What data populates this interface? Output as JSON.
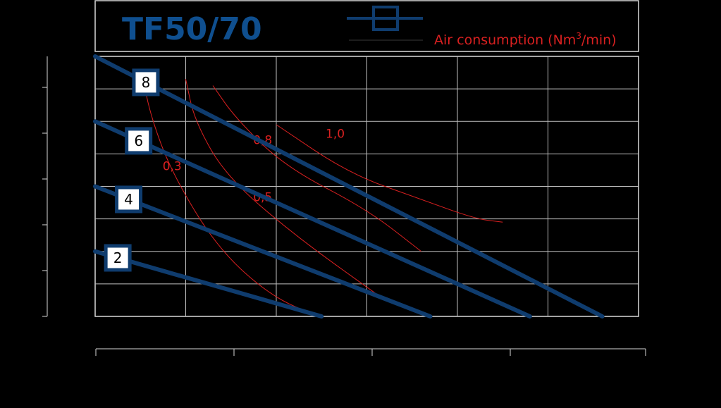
{
  "colors": {
    "background": "#000000",
    "frame": "#d9d9d9",
    "grid": "#bfbfbf",
    "series": "#0f3c6e",
    "title": "#0f4f8f",
    "air": "#d92020",
    "badge_fill": "#ffffff",
    "badge_text": "#000000"
  },
  "chart_data": {
    "type": "line",
    "title": "TF50/70",
    "legend_symbol": "square-marker-line",
    "air_legend": {
      "prefix": "Air consumption (Nm",
      "sup": "3",
      "suffix": "/min)"
    },
    "grid": true,
    "xlim": [
      0,
      6
    ],
    "ylim": [
      0,
      8
    ],
    "series": [
      {
        "name": "8",
        "points": [
          [
            0,
            8
          ],
          [
            5.6,
            0
          ]
        ]
      },
      {
        "name": "6",
        "points": [
          [
            0,
            6
          ],
          [
            4.8,
            0
          ]
        ]
      },
      {
        "name": "4",
        "points": [
          [
            0,
            4
          ],
          [
            3.7,
            0
          ]
        ]
      },
      {
        "name": "2",
        "points": [
          [
            0,
            2
          ],
          [
            2.5,
            0
          ]
        ]
      }
    ],
    "air_curves": [
      {
        "name": "0,3",
        "points": [
          [
            0.52,
            7.4
          ],
          [
            0.62,
            6.1
          ],
          [
            0.85,
            4.4
          ],
          [
            1.35,
            2.1
          ],
          [
            1.95,
            0.6
          ],
          [
            2.47,
            0
          ]
        ]
      },
      {
        "name": "0,5",
        "points": [
          [
            1.0,
            7.3
          ],
          [
            1.1,
            6.0
          ],
          [
            1.45,
            4.3
          ],
          [
            2.2,
            2.5
          ],
          [
            3.1,
            0.7
          ]
        ]
      },
      {
        "name": "0,8",
        "points": [
          [
            1.3,
            7.1
          ],
          [
            1.55,
            6.1
          ],
          [
            2.1,
            4.6
          ],
          [
            3.0,
            3.3
          ],
          [
            3.6,
            2.0
          ]
        ]
      },
      {
        "name": "1,0",
        "points": [
          [
            2.0,
            5.9
          ],
          [
            2.8,
            4.4
          ],
          [
            3.6,
            3.6
          ],
          [
            4.2,
            3.0
          ],
          [
            4.5,
            2.9
          ]
        ]
      }
    ],
    "air_label_positions": [
      [
        0.85,
        4.5
      ],
      [
        1.85,
        3.55
      ],
      [
        1.85,
        5.3
      ],
      [
        2.65,
        5.5
      ]
    ]
  }
}
